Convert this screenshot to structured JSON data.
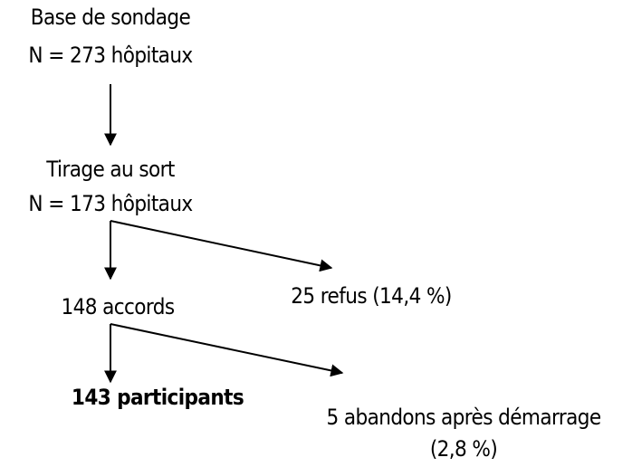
{
  "nodes": [
    {
      "lines": [
        "Base de sondage",
        "N = 273 hôpitaux"
      ]
    },
    {
      "lines": [
        "Tirage au sort",
        "N = 173 hôpitaux"
      ]
    },
    {
      "lines": [
        "148 accords"
      ]
    },
    {
      "lines": [
        "25 refus (14,4 %)"
      ]
    },
    {
      "lines": [
        "143 participants"
      ]
    },
    {
      "lines": [
        "5 abandons après démarrage",
        "(2,8 %)"
      ]
    }
  ]
}
